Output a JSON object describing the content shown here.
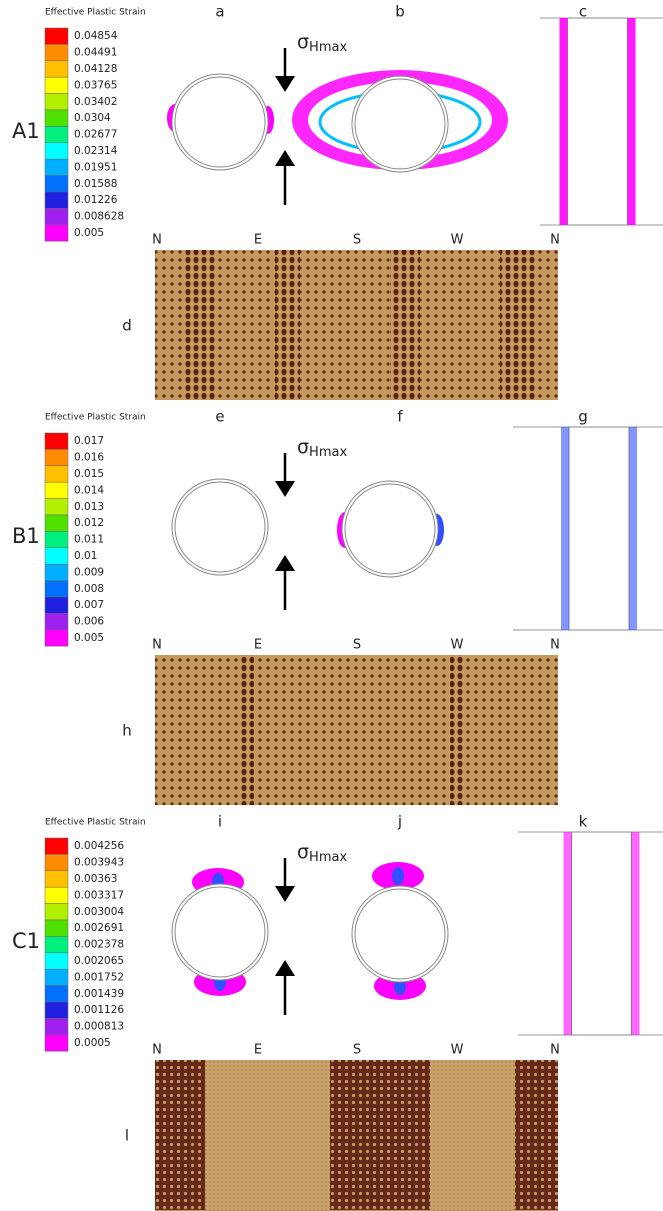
{
  "sections": [
    {
      "legend_title": "Effective Plastic Strain",
      "legend_labels": [
        "0.04854",
        "0.04491",
        "0.04128",
        "0.03765",
        "0.03402",
        "0.0304",
        "0.02677",
        "0.02314",
        "0.01951",
        "0.01588",
        "0.01226",
        "0.008628",
        "0.005"
      ],
      "row_label": "A1",
      "panel_labels": [
        "a",
        "b",
        "c",
        "d"
      ],
      "sigma": "σ",
      "sigma_sub": "Hmax",
      "compass": [
        "N",
        "E",
        "S",
        "W",
        "N"
      ]
    },
    {
      "legend_title": "Effective Plastic Strain",
      "legend_labels": [
        "0.017",
        "0.016",
        "0.015",
        "0.014",
        "0.013",
        "0.012",
        "0.011",
        "0.01",
        "0.009",
        "0.008",
        "0.007",
        "0.006",
        "0.005"
      ],
      "row_label": "B1",
      "panel_labels": [
        "e",
        "f",
        "g",
        "h"
      ],
      "sigma": "σ",
      "sigma_sub": "Hmax",
      "compass": [
        "N",
        "E",
        "S",
        "W",
        "N"
      ]
    },
    {
      "legend_title": "Effective Plastic Strain",
      "legend_labels": [
        "0.004256",
        "0.003943",
        "0.00363",
        "0.003317",
        "0.003004",
        "0.002691",
        "0.002378",
        "0.002065",
        "0.001752",
        "0.001439",
        "0.001126",
        "0.000813",
        "0.0005"
      ],
      "row_label": "C1",
      "panel_labels": [
        "i",
        "j",
        "k",
        "l"
      ],
      "sigma": "σ",
      "sigma_sub": "Hmax",
      "compass": [
        "N",
        "E",
        "S",
        "W",
        "N"
      ]
    }
  ],
  "legend_colors": [
    "#ff0000",
    "#ff8c00",
    "#ffc000",
    "#ffff00",
    "#b0f000",
    "#50e000",
    "#00f080",
    "#00ffff",
    "#00b0ff",
    "#0070ff",
    "#2020e0",
    "#a020f0",
    "#ff00ff"
  ]
}
